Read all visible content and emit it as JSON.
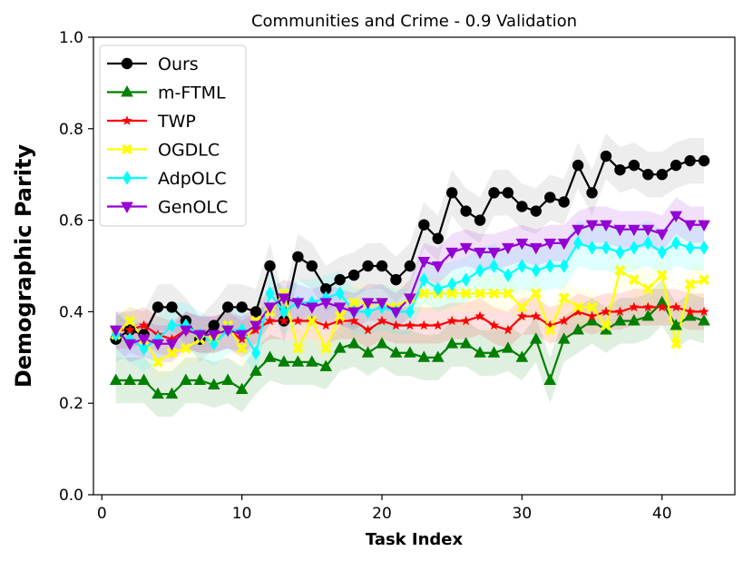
{
  "chart_data": {
    "type": "line",
    "title": "Communities and Crime - 0.9 Validation",
    "xlabel": "Task Index",
    "ylabel": "Demographic Parity",
    "xlim": [
      -0.6,
      45.2
    ],
    "ylim": [
      0.0,
      1.0
    ],
    "xticks": [
      0,
      10,
      20,
      30,
      40
    ],
    "yticks": [
      0.0,
      0.2,
      0.4,
      0.6,
      0.8,
      1.0
    ],
    "xtick_labels": [
      "0",
      "10",
      "20",
      "30",
      "40"
    ],
    "ytick_labels": [
      "0.0",
      "0.2",
      "0.4",
      "0.6",
      "0.8",
      "1.0"
    ],
    "grid": false,
    "legend_position": "top-left",
    "x": [
      1,
      2,
      3,
      4,
      5,
      6,
      7,
      8,
      9,
      10,
      11,
      12,
      13,
      14,
      15,
      16,
      17,
      18,
      19,
      20,
      21,
      22,
      23,
      24,
      25,
      26,
      27,
      28,
      29,
      30,
      31,
      32,
      33,
      34,
      35,
      36,
      37,
      38,
      39,
      40,
      41,
      42,
      43
    ],
    "series": [
      {
        "name": "Ours",
        "color": "#000000",
        "marker": "circle",
        "band": 0.05,
        "values": [
          0.34,
          0.36,
          0.35,
          0.41,
          0.41,
          0.38,
          0.34,
          0.37,
          0.41,
          0.41,
          0.4,
          0.5,
          0.38,
          0.52,
          0.5,
          0.45,
          0.47,
          0.48,
          0.5,
          0.5,
          0.47,
          0.5,
          0.59,
          0.56,
          0.66,
          0.62,
          0.6,
          0.66,
          0.66,
          0.63,
          0.62,
          0.65,
          0.64,
          0.72,
          0.66,
          0.74,
          0.71,
          0.72,
          0.7,
          0.7,
          0.72,
          0.73,
          0.73
        ]
      },
      {
        "name": "m-FTML",
        "color": "#008000",
        "marker": "triangle-up",
        "band": 0.05,
        "values": [
          0.25,
          0.25,
          0.25,
          0.22,
          0.22,
          0.25,
          0.25,
          0.24,
          0.25,
          0.23,
          0.27,
          0.3,
          0.29,
          0.29,
          0.29,
          0.28,
          0.32,
          0.33,
          0.31,
          0.33,
          0.31,
          0.31,
          0.3,
          0.3,
          0.33,
          0.33,
          0.31,
          0.31,
          0.32,
          0.3,
          0.34,
          0.25,
          0.34,
          0.36,
          0.38,
          0.36,
          0.38,
          0.38,
          0.39,
          0.42,
          0.37,
          0.39,
          0.38
        ]
      },
      {
        "name": "TWP",
        "color": "#ff0000",
        "marker": "star",
        "band": 0.04,
        "values": [
          0.36,
          0.36,
          0.37,
          0.35,
          0.34,
          0.36,
          0.35,
          0.35,
          0.36,
          0.34,
          0.36,
          0.38,
          0.38,
          0.38,
          0.38,
          0.37,
          0.38,
          0.38,
          0.36,
          0.38,
          0.37,
          0.37,
          0.37,
          0.37,
          0.38,
          0.38,
          0.39,
          0.37,
          0.36,
          0.39,
          0.39,
          0.37,
          0.38,
          0.4,
          0.39,
          0.4,
          0.4,
          0.41,
          0.41,
          0.41,
          0.41,
          0.4,
          0.4
        ]
      },
      {
        "name": "OGDLC",
        "color": "#ffff00",
        "marker": "x",
        "band": 0.04,
        "values": [
          0.35,
          0.38,
          0.34,
          0.29,
          0.31,
          0.32,
          0.34,
          0.34,
          0.37,
          0.32,
          0.38,
          0.4,
          0.44,
          0.32,
          0.38,
          0.32,
          0.39,
          0.42,
          0.42,
          0.42,
          0.41,
          0.43,
          0.44,
          0.44,
          0.44,
          0.44,
          0.44,
          0.44,
          0.44,
          0.41,
          0.44,
          0.36,
          0.43,
          0.41,
          0.41,
          0.37,
          0.49,
          0.47,
          0.45,
          0.48,
          0.33,
          0.46,
          0.47
        ]
      },
      {
        "name": "AdpOLC",
        "color": "#00ffff",
        "marker": "diamond",
        "band": 0.05,
        "values": [
          0.35,
          0.34,
          0.32,
          0.34,
          0.37,
          0.37,
          0.35,
          0.33,
          0.36,
          0.36,
          0.31,
          0.44,
          0.4,
          0.42,
          0.42,
          0.43,
          0.44,
          0.4,
          0.4,
          0.41,
          0.4,
          0.4,
          0.47,
          0.45,
          0.46,
          0.47,
          0.49,
          0.5,
          0.48,
          0.5,
          0.49,
          0.5,
          0.5,
          0.55,
          0.54,
          0.54,
          0.53,
          0.54,
          0.55,
          0.53,
          0.55,
          0.54,
          0.54
        ]
      },
      {
        "name": "GenOLC",
        "color": "#9400d3",
        "marker": "triangle-down",
        "band": 0.04,
        "values": [
          0.36,
          0.33,
          0.34,
          0.33,
          0.33,
          0.36,
          0.35,
          0.35,
          0.36,
          0.35,
          0.37,
          0.41,
          0.43,
          0.42,
          0.41,
          0.42,
          0.41,
          0.4,
          0.42,
          0.42,
          0.4,
          0.43,
          0.51,
          0.5,
          0.53,
          0.54,
          0.53,
          0.53,
          0.54,
          0.55,
          0.54,
          0.55,
          0.55,
          0.58,
          0.59,
          0.59,
          0.58,
          0.58,
          0.58,
          0.57,
          0.61,
          0.59,
          0.59
        ]
      }
    ]
  }
}
